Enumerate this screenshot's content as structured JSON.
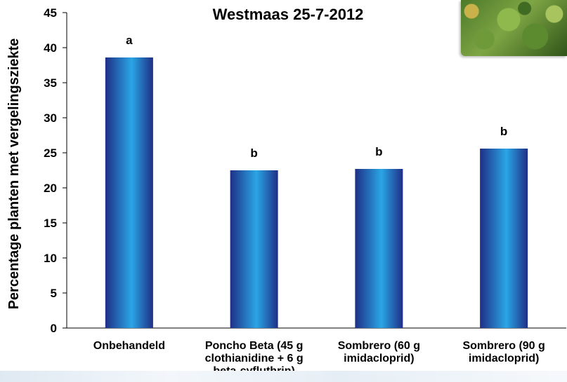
{
  "chart_data": {
    "type": "bar",
    "title": "Westmaas 25-7-2012",
    "ylabel": "Percentage planten met vergelingsziekte",
    "xlabel": "",
    "ylim": [
      0,
      45
    ],
    "yticks": [
      0,
      5,
      10,
      15,
      20,
      25,
      30,
      35,
      40,
      45
    ],
    "categories": [
      [
        "Onbehandeld"
      ],
      [
        "Poncho Beta (45 g",
        "clothianidine + 6 g",
        "beta-cyfluthrin)"
      ],
      [
        "Sombrero (60 g",
        "imidacloprid)"
      ],
      [
        "Sombrero (90 g",
        "imidacloprid)"
      ]
    ],
    "values": [
      38.6,
      22.5,
      22.7,
      25.6
    ],
    "significance_letters": [
      "a",
      "b",
      "b",
      "b"
    ],
    "grid": false,
    "bar_colors": {
      "edge": "#1f2f86",
      "center": "#2aa6e6"
    }
  },
  "decor": {
    "photo": "sugar-beet-leaves-photo"
  }
}
